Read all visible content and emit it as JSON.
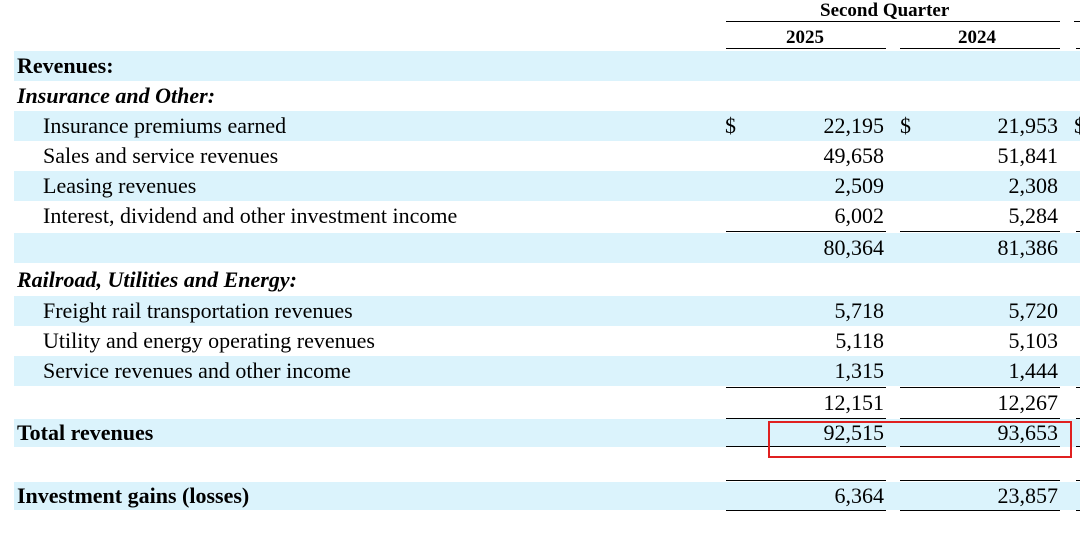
{
  "header": {
    "period": "Second Quarter",
    "col_2025": "2025",
    "col_2024": "2024"
  },
  "currency_symbol": "$",
  "rows": {
    "revenues_heading": "Revenues:",
    "insurance_heading": "Insurance and Other:",
    "insurance_premiums": {
      "label": "Insurance premiums earned",
      "v2025": "22,195",
      "v2024": "21,953"
    },
    "sales_service": {
      "label": "Sales and service revenues",
      "v2025": "49,658",
      "v2024": "51,841"
    },
    "leasing": {
      "label": "Leasing revenues",
      "v2025": "2,509",
      "v2024": "2,308"
    },
    "interest_dividend": {
      "label": "Interest, dividend and other investment income",
      "v2025": "6,002",
      "v2024": "5,284"
    },
    "insurance_subtotal": {
      "v2025": "80,364",
      "v2024": "81,386"
    },
    "railroad_heading": "Railroad, Utilities and Energy:",
    "freight_rail": {
      "label": "Freight rail transportation revenues",
      "v2025": "5,718",
      "v2024": "5,720"
    },
    "utility_energy": {
      "label": "Utility and energy operating revenues",
      "v2025": "5,118",
      "v2024": "5,103"
    },
    "service_other": {
      "label": "Service revenues and other income",
      "v2025": "1,315",
      "v2024": "1,444"
    },
    "railroad_subtotal": {
      "v2025": "12,151",
      "v2024": "12,267"
    },
    "total_revenues": {
      "label": "Total revenues",
      "v2025": "92,515",
      "v2024": "93,653"
    },
    "investment_gains": {
      "label": "Investment gains (losses)",
      "v2025": "6,364",
      "v2024": "23,857"
    }
  },
  "highlight_color": "#e02020",
  "shade_color": "#dbf3fc"
}
